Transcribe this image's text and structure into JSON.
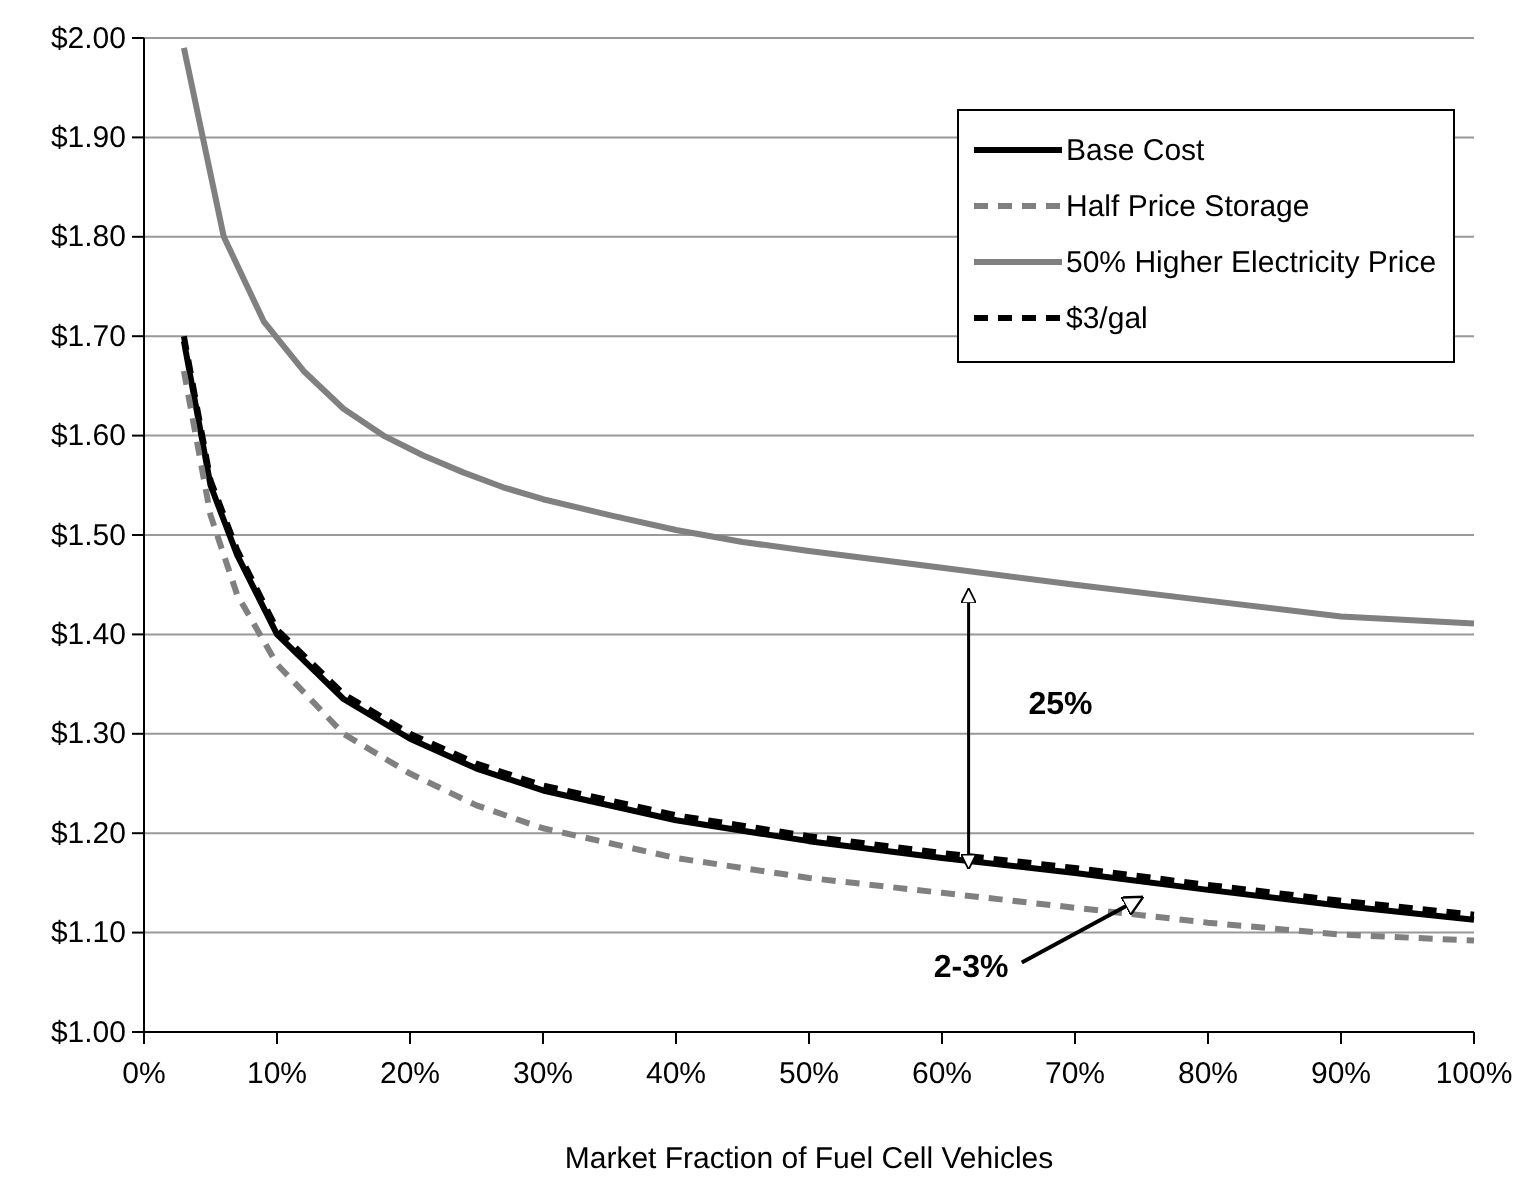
{
  "chart_data": {
    "type": "line",
    "xlabel": "Market Fraction of Fuel Cell Vehicles",
    "xlim": [
      0,
      100
    ],
    "xticks": [
      {
        "value": 0,
        "label": "0%"
      },
      {
        "value": 10,
        "label": "10%"
      },
      {
        "value": 20,
        "label": "20%"
      },
      {
        "value": 30,
        "label": "30%"
      },
      {
        "value": 40,
        "label": "40%"
      },
      {
        "value": 50,
        "label": "50%"
      },
      {
        "value": 60,
        "label": "60%"
      },
      {
        "value": 70,
        "label": "70%"
      },
      {
        "value": 80,
        "label": "80%"
      },
      {
        "value": 90,
        "label": "90%"
      },
      {
        "value": 100,
        "label": "100%"
      }
    ],
    "ylim": [
      1,
      2
    ],
    "yticks": [
      {
        "value": 1,
        "label": "$1.00"
      },
      {
        "value": 1.1,
        "label": "$1.10"
      },
      {
        "value": 1.2,
        "label": "$1.20"
      },
      {
        "value": 1.3,
        "label": "$1.30"
      },
      {
        "value": 1.4,
        "label": "$1.40"
      },
      {
        "value": 1.5,
        "label": "$1.50"
      },
      {
        "value": 1.6,
        "label": "$1.60"
      },
      {
        "value": 1.7,
        "label": "$1.70"
      },
      {
        "value": 1.8,
        "label": "$1.80"
      },
      {
        "value": 1.9,
        "label": "$1.90"
      },
      {
        "value": 2,
        "label": "$2.00"
      }
    ],
    "grid": "y",
    "legend": "top right",
    "marker": "none",
    "series": [
      {
        "name": "Base Cost",
        "color": "#000000",
        "line_style": "solid",
        "x": [
          3,
          5,
          7,
          10,
          15,
          20,
          25,
          30,
          40,
          50,
          60,
          70,
          80,
          90,
          100
        ],
        "values": [
          1.695,
          1.55,
          1.48,
          1.4,
          1.335,
          1.295,
          1.265,
          1.243,
          1.213,
          1.192,
          1.175,
          1.16,
          1.143,
          1.127,
          1.113
        ]
      },
      {
        "name": "Half Price Storage",
        "color": "#808080",
        "line_style": "dashed",
        "x": [
          3,
          5,
          7,
          10,
          15,
          20,
          25,
          30,
          40,
          50,
          60,
          70,
          80,
          90,
          100
        ],
        "values": [
          1.665,
          1.52,
          1.44,
          1.37,
          1.3,
          1.26,
          1.228,
          1.205,
          1.175,
          1.155,
          1.14,
          1.125,
          1.11,
          1.098,
          1.092
        ]
      },
      {
        "name": "50% Higher Electricity Price",
        "color": "#808080",
        "line_style": "solid",
        "x": [
          3,
          6,
          9,
          12,
          15,
          18,
          21,
          24,
          27,
          30,
          35,
          40,
          45,
          50,
          60,
          70,
          80,
          90,
          100
        ],
        "values": [
          1.99,
          1.8,
          1.715,
          1.665,
          1.627,
          1.6,
          1.58,
          1.563,
          1.548,
          1.536,
          1.52,
          1.505,
          1.493,
          1.484,
          1.467,
          1.45,
          1.434,
          1.418,
          1.411
        ]
      },
      {
        "name": "$3/gal",
        "color": "#000000",
        "line_style": "dashed",
        "x": [
          3,
          5,
          7,
          10,
          15,
          20,
          25,
          30,
          40,
          50,
          60,
          70,
          80,
          90,
          100
        ],
        "values": [
          1.7,
          1.555,
          1.485,
          1.405,
          1.34,
          1.3,
          1.27,
          1.248,
          1.218,
          1.197,
          1.18,
          1.165,
          1.148,
          1.132,
          1.118
        ]
      }
    ],
    "annotations": [
      "25%",
      "2-3%"
    ]
  }
}
